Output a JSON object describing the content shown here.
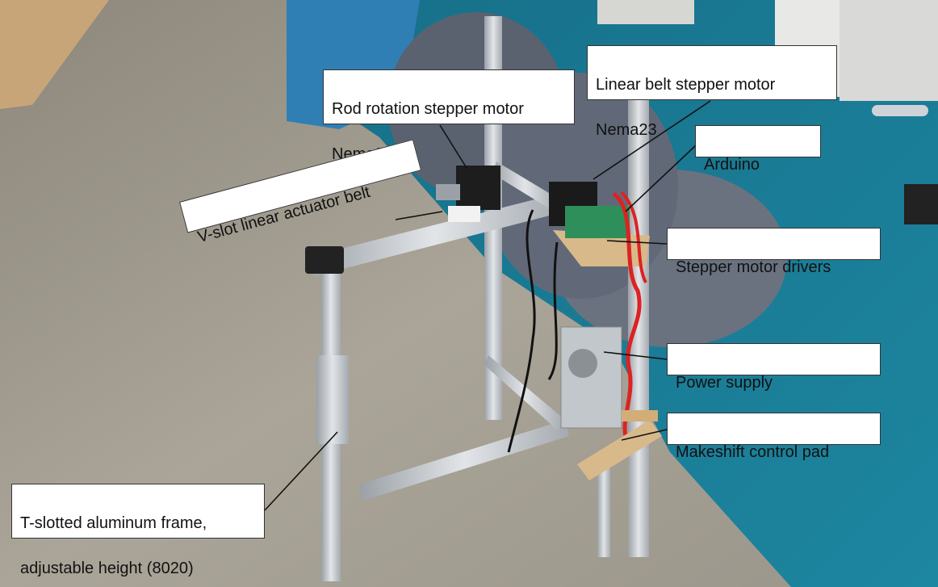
{
  "labels": {
    "rod_rotation_motor": {
      "line1": "Rod rotation stepper motor",
      "line2": "Nema23"
    },
    "linear_belt_motor": {
      "line1": "Linear belt stepper motor",
      "line2": "Nema23"
    },
    "arduino": "Arduino",
    "stepper_drivers": "Stepper motor drivers",
    "power_supply": "Power supply",
    "control_pad": "Makeshift control pad",
    "vslot_belt": "V-slot linear actuator belt",
    "frame": {
      "line1": "T-slotted aluminum frame,",
      "line2": "adjustable height (8020)"
    }
  },
  "colors": {
    "carpet": "#1f7f99",
    "floor": "#a9a397",
    "wall_blue": "#2f7fb5",
    "pouf": "#5a6270",
    "aluminum": "#c9cdd2",
    "wood": "#d8b98a"
  }
}
